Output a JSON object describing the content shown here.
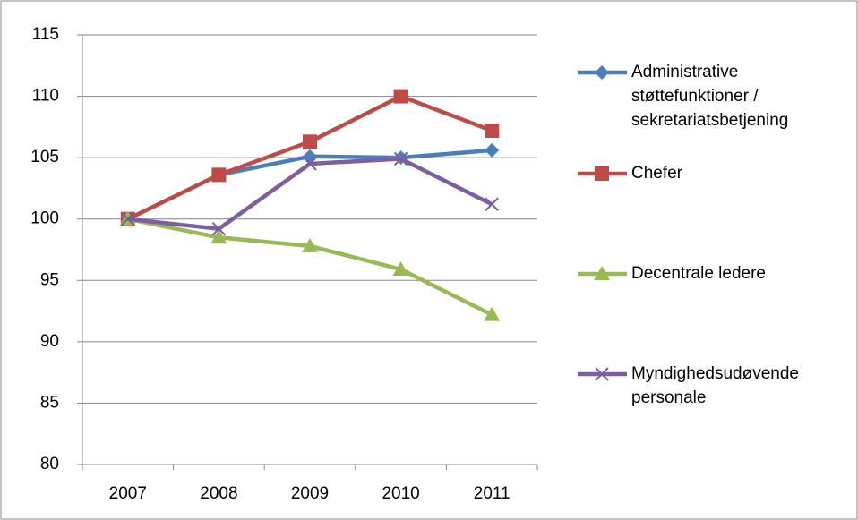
{
  "chart_data": {
    "type": "line",
    "categories": [
      "2007",
      "2008",
      "2009",
      "2010",
      "2011"
    ],
    "series": [
      {
        "name": "Administrative støttefunktioner / sekretariatsbetjening",
        "color": "#4a7ebb",
        "marker": "diamond",
        "values": [
          100,
          103.6,
          105.1,
          105.0,
          105.6
        ]
      },
      {
        "name": "Chefer",
        "color": "#be4b48",
        "marker": "square",
        "values": [
          100,
          103.6,
          106.3,
          110.0,
          107.2
        ]
      },
      {
        "name": "Decentrale ledere",
        "color": "#98b954",
        "marker": "triangle",
        "values": [
          100,
          98.5,
          97.8,
          95.9,
          92.2
        ]
      },
      {
        "name": "Myndighedsudøvende personale",
        "color": "#7d5fa0",
        "marker": "x",
        "values": [
          100,
          99.2,
          104.5,
          104.9,
          101.2
        ]
      }
    ],
    "ylim": [
      80,
      115
    ],
    "yticks": [
      80,
      85,
      90,
      95,
      100,
      105,
      110,
      115
    ],
    "grid": true,
    "legend": "right"
  }
}
